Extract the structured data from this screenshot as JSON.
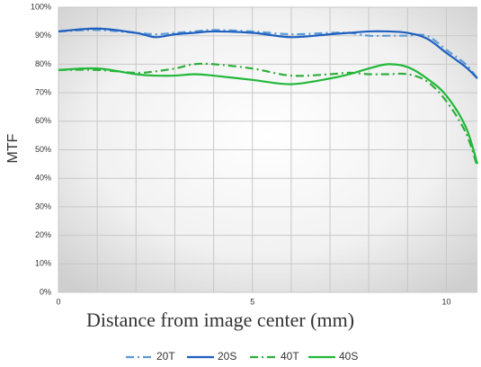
{
  "chart_data": {
    "type": "line",
    "y_label": "MTF",
    "x_label": "Distance from image center (mm)",
    "x": [
      0,
      1,
      2,
      2.5,
      3,
      3.5,
      4,
      5,
      6,
      7,
      7.5,
      8,
      8.5,
      9,
      9.5,
      10,
      10.5,
      10.8
    ],
    "series": [
      {
        "name": "20T",
        "color": "#5b9bd5",
        "dash": "dashdot",
        "values": [
          91.5,
          92,
          91,
          90.5,
          91,
          91.5,
          92,
          91.5,
          90.5,
          91,
          91,
          90,
          90,
          90,
          90,
          85,
          80,
          75
        ]
      },
      {
        "name": "20S",
        "color": "#1f5fbf",
        "dash": "solid",
        "values": [
          91.5,
          92.5,
          91,
          89.5,
          90.5,
          91,
          91.5,
          91,
          89.5,
          90.5,
          91,
          91.5,
          91.5,
          91,
          89,
          84,
          79,
          75
        ]
      },
      {
        "name": "40T",
        "color": "#2eae3a",
        "dash": "dashdot",
        "values": [
          78,
          78,
          77,
          77.5,
          78.5,
          80,
          80,
          78.5,
          76,
          76.5,
          77,
          76.5,
          76.5,
          76.5,
          74,
          67,
          56,
          44
        ]
      },
      {
        "name": "40S",
        "color": "#22b83a",
        "dash": "solid",
        "values": [
          78,
          78.5,
          76.5,
          76,
          76,
          76.5,
          76,
          74.5,
          73,
          75,
          76.5,
          78.5,
          80,
          79,
          75,
          69,
          58,
          45
        ]
      }
    ],
    "xlim": [
      0,
      10.8
    ],
    "xticks": [
      0,
      5,
      10
    ],
    "x_grid": [
      0,
      1,
      2,
      3,
      4,
      5,
      6,
      7,
      8,
      9,
      10
    ],
    "ylim": [
      0,
      100
    ],
    "yticks": [
      {
        "value": 0,
        "label": "0%"
      },
      {
        "value": 10,
        "label": "10%"
      },
      {
        "value": 20,
        "label": "20%"
      },
      {
        "value": 30,
        "label": "30%"
      },
      {
        "value": 40,
        "label": "40%"
      },
      {
        "value": 50,
        "label": "50%"
      },
      {
        "value": 60,
        "label": "60%"
      },
      {
        "value": 70,
        "label": "70%"
      },
      {
        "value": 80,
        "label": "80%"
      },
      {
        "value": 90,
        "label": "90%"
      },
      {
        "value": 100,
        "label": "100%"
      }
    ],
    "grid": true,
    "legend": "bottom"
  }
}
